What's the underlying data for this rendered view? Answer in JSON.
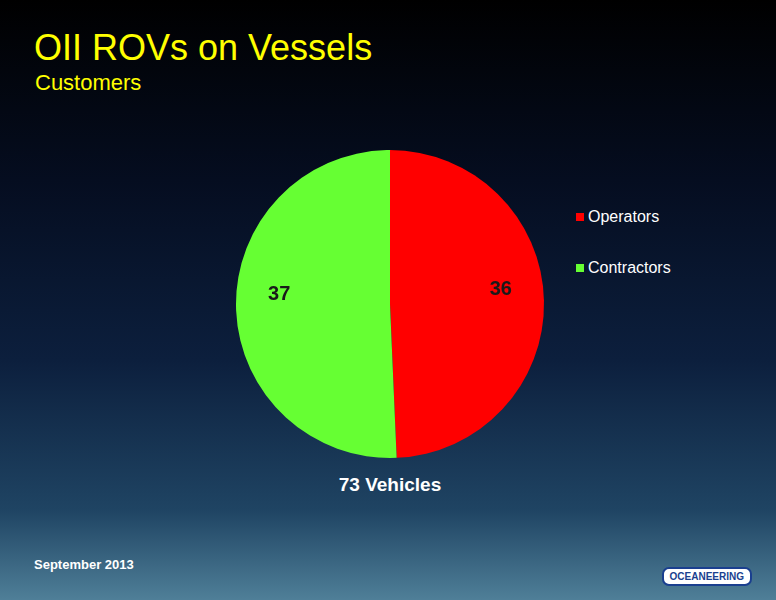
{
  "chart_data": {
    "type": "pie",
    "title": "OII ROVs on Vessels",
    "subtitle": "Customers",
    "categories": [
      "Operators",
      "Contractors"
    ],
    "values": [
      36,
      37
    ],
    "colors": [
      "#ff0000",
      "#66ff33"
    ],
    "legend": "right",
    "data_labels": true,
    "annotations": [
      "73 Vehicles"
    ]
  },
  "footer": {
    "date": "September 2013",
    "logo": "OCEANEERING"
  }
}
